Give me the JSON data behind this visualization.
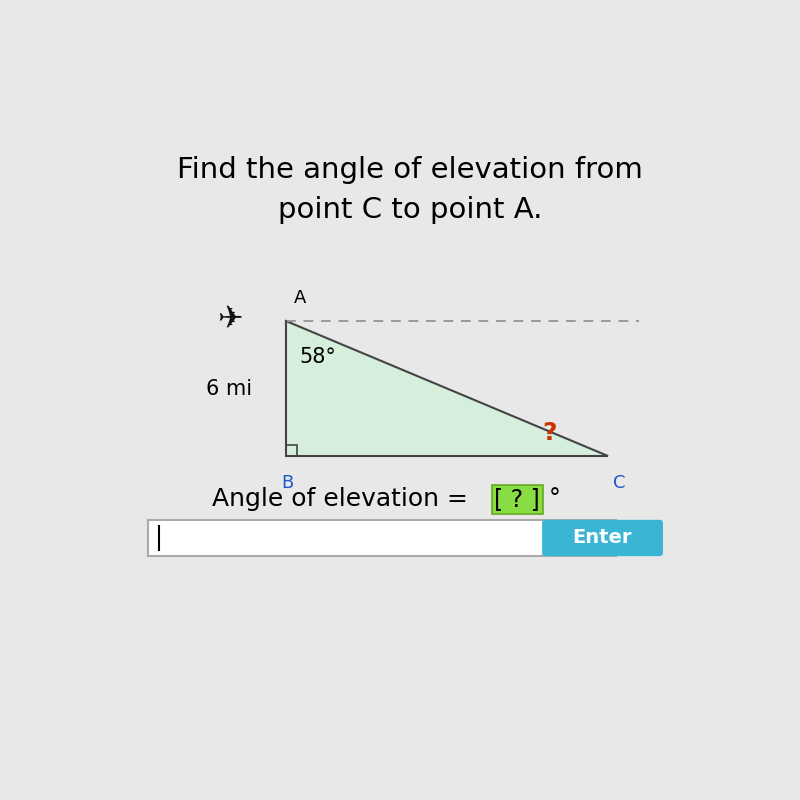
{
  "title_line1": "Find the angle of elevation from",
  "title_line2": "point C to point A.",
  "angle_label": "58°",
  "side_label": "6 mi",
  "question_mark": "?",
  "point_A_label": "A",
  "point_B_label": "B",
  "point_C_label": "C",
  "bg_color": "#e8e8e8",
  "triangle_fill": "#d6eedc",
  "triangle_edge": "#444444",
  "dashed_line_color": "#999999",
  "title_fontsize": 21,
  "label_fontsize": 15,
  "point_label_fontsize": 13,
  "question_color": "#cc3300",
  "enter_button_color": "#3ab5d4",
  "enter_text_color": "#ffffff",
  "bracket_box_color": "#88dd44",
  "point_color_BC": "#2255cc",
  "A": [
    0.3,
    0.635
  ],
  "B": [
    0.3,
    0.415
  ],
  "C": [
    0.82,
    0.415
  ]
}
